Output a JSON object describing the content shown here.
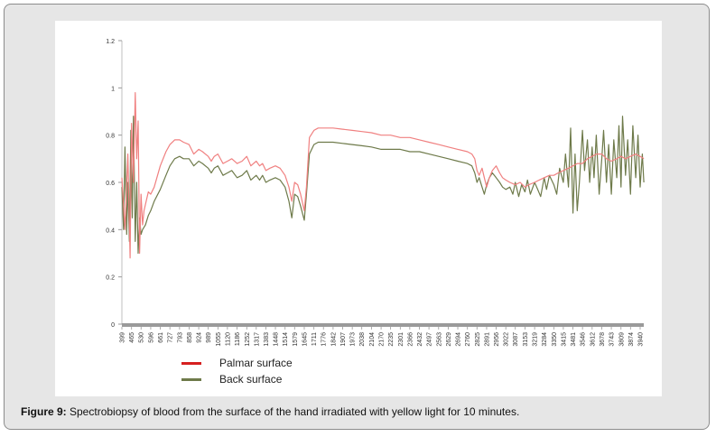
{
  "caption": {
    "label": "Figure 9:",
    "text": " Spectrobiopsy of blood from the surface of the hand irradiated with yellow light for 10 minutes."
  },
  "chart_data": {
    "type": "line",
    "xlabel": "",
    "ylabel": "",
    "ylim": [
      0,
      1.2
    ],
    "yticks": [
      "0",
      "0.2",
      "0.4",
      "0.6",
      "0.8",
      "1",
      "1.2"
    ],
    "grid": false,
    "legend_position": "bottom-left",
    "x_tick_labels": [
      "399",
      "465",
      "530",
      "596",
      "661",
      "727",
      "793",
      "858",
      "924",
      "989",
      "1055",
      "1120",
      "1186",
      "1252",
      "1317",
      "1383",
      "1448",
      "1514",
      "1579",
      "1645",
      "1711",
      "1776",
      "1842",
      "1907",
      "1973",
      "2038",
      "2104",
      "2170",
      "2235",
      "2301",
      "2366",
      "2432",
      "2497",
      "2563",
      "2629",
      "2694",
      "2760",
      "2825",
      "2891",
      "2956",
      "3022",
      "3087",
      "3153",
      "3219",
      "3284",
      "3350",
      "3415",
      "3481",
      "3546",
      "3612",
      "3678",
      "3743",
      "3809",
      "3874",
      "3940"
    ],
    "series": [
      {
        "name": "Palmar surface",
        "color": "#f08080",
        "x": [
          399,
          420,
          440,
          455,
          465,
          478,
          490,
          500,
          510,
          520,
          530,
          540,
          550,
          565,
          580,
          596,
          620,
          661,
          700,
          727,
          760,
          793,
          820,
          858,
          890,
          924,
          950,
          989,
          1010,
          1030,
          1055,
          1090,
          1120,
          1150,
          1186,
          1220,
          1252,
          1280,
          1317,
          1340,
          1360,
          1383,
          1410,
          1448,
          1480,
          1514,
          1540,
          1560,
          1579,
          1600,
          1620,
          1645,
          1660,
          1680,
          1711,
          1740,
          1776,
          1842,
          1907,
          1973,
          2038,
          2104,
          2170,
          2235,
          2301,
          2366,
          2432,
          2497,
          2563,
          2629,
          2694,
          2760,
          2790,
          2810,
          2825,
          2840,
          2860,
          2875,
          2891,
          2910,
          2930,
          2956,
          2980,
          3000,
          3022,
          3050,
          3087,
          3120,
          3153,
          3180,
          3219,
          3250,
          3284,
          3320,
          3350,
          3380,
          3415,
          3450,
          3481,
          3510,
          3546,
          3580,
          3612,
          3640,
          3678,
          3710,
          3743,
          3780,
          3809,
          3840,
          3874,
          3910,
          3940,
          3965
        ],
        "values": [
          0.62,
          0.4,
          0.72,
          0.28,
          0.85,
          0.6,
          0.98,
          0.7,
          0.86,
          0.3,
          0.55,
          0.42,
          0.48,
          0.52,
          0.56,
          0.55,
          0.58,
          0.67,
          0.73,
          0.76,
          0.78,
          0.78,
          0.77,
          0.76,
          0.72,
          0.74,
          0.73,
          0.71,
          0.69,
          0.71,
          0.72,
          0.68,
          0.69,
          0.7,
          0.68,
          0.69,
          0.71,
          0.67,
          0.69,
          0.67,
          0.68,
          0.65,
          0.66,
          0.67,
          0.66,
          0.63,
          0.58,
          0.52,
          0.6,
          0.59,
          0.55,
          0.48,
          0.58,
          0.79,
          0.82,
          0.83,
          0.83,
          0.83,
          0.825,
          0.82,
          0.815,
          0.81,
          0.8,
          0.8,
          0.79,
          0.79,
          0.78,
          0.77,
          0.76,
          0.75,
          0.74,
          0.73,
          0.72,
          0.7,
          0.65,
          0.63,
          0.66,
          0.62,
          0.58,
          0.62,
          0.65,
          0.67,
          0.64,
          0.62,
          0.61,
          0.6,
          0.59,
          0.6,
          0.58,
          0.59,
          0.6,
          0.61,
          0.62,
          0.63,
          0.63,
          0.64,
          0.65,
          0.66,
          0.67,
          0.68,
          0.68,
          0.7,
          0.71,
          0.72,
          0.72,
          0.7,
          0.69,
          0.7,
          0.71,
          0.7,
          0.71,
          0.72,
          0.71,
          0.7
        ]
      },
      {
        "name": "Back surface",
        "color": "#6e7a4a",
        "x": [
          399,
          410,
          420,
          432,
          440,
          450,
          460,
          470,
          478,
          490,
          500,
          510,
          520,
          530,
          540,
          560,
          580,
          596,
          620,
          661,
          700,
          727,
          760,
          793,
          820,
          858,
          890,
          924,
          950,
          989,
          1010,
          1030,
          1055,
          1090,
          1120,
          1150,
          1186,
          1220,
          1252,
          1280,
          1317,
          1340,
          1360,
          1383,
          1410,
          1448,
          1480,
          1514,
          1540,
          1560,
          1579,
          1600,
          1620,
          1645,
          1660,
          1680,
          1711,
          1740,
          1776,
          1842,
          1907,
          1973,
          2038,
          2104,
          2170,
          2235,
          2301,
          2366,
          2432,
          2497,
          2563,
          2629,
          2694,
          2760,
          2790,
          2810,
          2825,
          2840,
          2860,
          2875,
          2891,
          2910,
          2930,
          2956,
          2980,
          3000,
          3022,
          3050,
          3070,
          3087,
          3110,
          3130,
          3153,
          3170,
          3190,
          3219,
          3240,
          3260,
          3284,
          3300,
          3320,
          3350,
          3370,
          3390,
          3415,
          3430,
          3450,
          3465,
          3481,
          3495,
          3510,
          3525,
          3546,
          3560,
          3580,
          3595,
          3612,
          3625,
          3640,
          3660,
          3678,
          3690,
          3710,
          3725,
          3743,
          3760,
          3780,
          3795,
          3809,
          3820,
          3840,
          3855,
          3874,
          3890,
          3910,
          3925,
          3940,
          3955,
          3965
        ],
        "values": [
          0.58,
          0.4,
          0.75,
          0.38,
          0.6,
          0.35,
          0.82,
          0.45,
          0.88,
          0.35,
          0.6,
          0.3,
          0.45,
          0.38,
          0.4,
          0.42,
          0.46,
          0.48,
          0.52,
          0.57,
          0.63,
          0.67,
          0.7,
          0.71,
          0.7,
          0.7,
          0.67,
          0.69,
          0.68,
          0.66,
          0.64,
          0.66,
          0.67,
          0.63,
          0.64,
          0.65,
          0.62,
          0.63,
          0.65,
          0.61,
          0.63,
          0.61,
          0.63,
          0.6,
          0.61,
          0.62,
          0.61,
          0.58,
          0.52,
          0.45,
          0.55,
          0.54,
          0.5,
          0.44,
          0.55,
          0.72,
          0.76,
          0.77,
          0.77,
          0.77,
          0.765,
          0.76,
          0.755,
          0.75,
          0.74,
          0.74,
          0.74,
          0.73,
          0.73,
          0.72,
          0.71,
          0.7,
          0.69,
          0.68,
          0.67,
          0.64,
          0.6,
          0.62,
          0.58,
          0.55,
          0.59,
          0.62,
          0.64,
          0.62,
          0.6,
          0.58,
          0.57,
          0.58,
          0.55,
          0.6,
          0.54,
          0.59,
          0.56,
          0.61,
          0.55,
          0.6,
          0.57,
          0.54,
          0.62,
          0.57,
          0.63,
          0.59,
          0.55,
          0.66,
          0.6,
          0.72,
          0.58,
          0.83,
          0.47,
          0.72,
          0.48,
          0.6,
          0.82,
          0.65,
          0.78,
          0.6,
          0.75,
          0.62,
          0.8,
          0.55,
          0.7,
          0.82,
          0.6,
          0.76,
          0.55,
          0.78,
          0.62,
          0.84,
          0.58,
          0.88,
          0.63,
          0.78,
          0.55,
          0.84,
          0.62,
          0.8,
          0.58,
          0.72,
          0.6
        ]
      }
    ]
  }
}
